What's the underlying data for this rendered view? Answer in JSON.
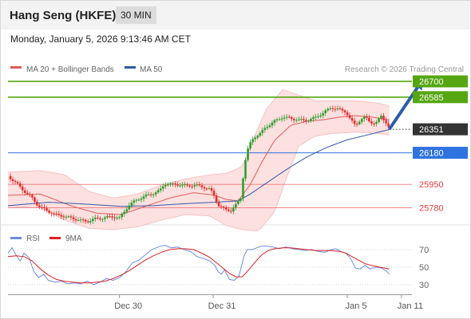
{
  "header": {
    "title": "Hang Seng (HKFE)",
    "interval": "30 MIN",
    "timestamp": "Monday, January 5, 2026 9:13:46 AM CET"
  },
  "legend": {
    "ma20_bb": "MA 20 + Bollinger Bands",
    "ma50": "MA 50",
    "credit": "Research © 2026 Trading Central",
    "rsi": "RSI",
    "rsi_ma": "9MA"
  },
  "colors": {
    "candle_up": "#2e9e2e",
    "candle_down": "#e03030",
    "ma20": "#e05a5a",
    "ma50": "#2f5aa8",
    "bands_fill": "#fde0e0",
    "target_green": "#55a611",
    "pivot_blue": "#2f73e0",
    "support_red": "#e04040",
    "current_bg": "#333333",
    "arrow": "#2b5ea8",
    "rsi_line": "#6a8de0",
    "rsi_ma_line": "#e02020"
  },
  "chart_data": [
    {
      "type": "candlestick",
      "title": "Hang Seng (HKFE)",
      "interval": "30 MIN",
      "ylim": [
        25655,
        26735
      ],
      "x_range": [
        0,
        500
      ],
      "x_tick_labels": [
        {
          "label": "Dec 30",
          "x": 138
        },
        {
          "label": "Dec 31",
          "x": 254
        },
        {
          "label": "Jan 5",
          "x": 420
        },
        {
          "label": "Jan 11",
          "x": 487
        }
      ],
      "levels": [
        {
          "value": 26700,
          "label": "26700",
          "kind": "target"
        },
        {
          "value": 26585,
          "label": "26585",
          "kind": "target"
        },
        {
          "value": 26351,
          "label": "26351",
          "kind": "current"
        },
        {
          "value": 26180,
          "label": "26180",
          "kind": "pivot"
        },
        {
          "value": 25950,
          "label": "25950",
          "kind": "support"
        },
        {
          "value": 25780,
          "label": "25780",
          "kind": "support"
        }
      ],
      "close_keypoints": [
        [
          0,
          26010
        ],
        [
          6,
          25980
        ],
        [
          12,
          25950
        ],
        [
          20,
          25900
        ],
        [
          30,
          25850
        ],
        [
          38,
          25790
        ],
        [
          48,
          25760
        ],
        [
          58,
          25730
        ],
        [
          68,
          25720
        ],
        [
          78,
          25705
        ],
        [
          88,
          25690
        ],
        [
          98,
          25680
        ],
        [
          108,
          25700
        ],
        [
          118,
          25705
        ],
        [
          128,
          25715
        ],
        [
          138,
          25705
        ],
        [
          145,
          25760
        ],
        [
          150,
          25800
        ],
        [
          160,
          25840
        ],
        [
          170,
          25865
        ],
        [
          180,
          25885
        ],
        [
          188,
          25905
        ],
        [
          194,
          25955
        ],
        [
          202,
          25950
        ],
        [
          212,
          25948
        ],
        [
          222,
          25940
        ],
        [
          232,
          25945
        ],
        [
          242,
          25930
        ],
        [
          250,
          25915
        ],
        [
          256,
          25860
        ],
        [
          260,
          25800
        ],
        [
          264,
          25785
        ],
        [
          270,
          25765
        ],
        [
          276,
          25760
        ],
        [
          282,
          25800
        ],
        [
          288,
          25850
        ],
        [
          291,
          26000
        ],
        [
          294,
          26130
        ],
        [
          298,
          26230
        ],
        [
          304,
          26290
        ],
        [
          312,
          26320
        ],
        [
          320,
          26370
        ],
        [
          330,
          26410
        ],
        [
          340,
          26440
        ],
        [
          350,
          26430
        ],
        [
          360,
          26420
        ],
        [
          370,
          26415
        ],
        [
          380,
          26435
        ],
        [
          390,
          26470
        ],
        [
          400,
          26510
        ],
        [
          410,
          26495
        ],
        [
          418,
          26480
        ],
        [
          424,
          26420
        ],
        [
          430,
          26380
        ],
        [
          436,
          26420
        ],
        [
          442,
          26440
        ],
        [
          448,
          26405
        ],
        [
          455,
          26390
        ],
        [
          462,
          26450
        ],
        [
          468,
          26400
        ],
        [
          472,
          26351
        ]
      ],
      "ma20_keypoints": [
        [
          0,
          25870
        ],
        [
          40,
          25880
        ],
        [
          80,
          25790
        ],
        [
          110,
          25740
        ],
        [
          140,
          25730
        ],
        [
          170,
          25790
        ],
        [
          200,
          25850
        ],
        [
          230,
          25890
        ],
        [
          256,
          25870
        ],
        [
          270,
          25840
        ],
        [
          285,
          25830
        ],
        [
          300,
          25950
        ],
        [
          315,
          26120
        ],
        [
          330,
          26270
        ],
        [
          350,
          26380
        ],
        [
          370,
          26410
        ],
        [
          390,
          26420
        ],
        [
          410,
          26440
        ],
        [
          430,
          26450
        ],
        [
          450,
          26440
        ],
        [
          472,
          26420
        ]
      ],
      "ma50_keypoints": [
        [
          0,
          25795
        ],
        [
          50,
          25820
        ],
        [
          100,
          25805
        ],
        [
          140,
          25790
        ],
        [
          180,
          25795
        ],
        [
          220,
          25810
        ],
        [
          255,
          25820
        ],
        [
          285,
          25830
        ],
        [
          300,
          25880
        ],
        [
          320,
          25960
        ],
        [
          345,
          26060
        ],
        [
          370,
          26150
        ],
        [
          395,
          26220
        ],
        [
          420,
          26275
        ],
        [
          445,
          26310
        ],
        [
          472,
          26350
        ]
      ],
      "band_upper_keypoints": [
        [
          0,
          26040
        ],
        [
          40,
          26050
        ],
        [
          70,
          26020
        ],
        [
          100,
          25900
        ],
        [
          130,
          25850
        ],
        [
          160,
          25880
        ],
        [
          190,
          25945
        ],
        [
          220,
          25990
        ],
        [
          250,
          26020
        ],
        [
          270,
          26030
        ],
        [
          290,
          26080
        ],
        [
          305,
          26300
        ],
        [
          320,
          26500
        ],
        [
          340,
          26640
        ],
        [
          360,
          26600
        ],
        [
          380,
          26560
        ],
        [
          400,
          26560
        ],
        [
          430,
          26560
        ],
        [
          460,
          26540
        ],
        [
          472,
          26520
        ]
      ],
      "band_lower_keypoints": [
        [
          0,
          25790
        ],
        [
          40,
          25780
        ],
        [
          70,
          25690
        ],
        [
          100,
          25630
        ],
        [
          130,
          25620
        ],
        [
          160,
          25640
        ],
        [
          190,
          25690
        ],
        [
          220,
          25730
        ],
        [
          250,
          25720
        ],
        [
          270,
          25650
        ],
        [
          290,
          25620
        ],
        [
          310,
          25610
        ],
        [
          330,
          25750
        ],
        [
          345,
          26000
        ],
        [
          360,
          26230
        ],
        [
          380,
          26300
        ],
        [
          400,
          26320
        ],
        [
          430,
          26330
        ],
        [
          460,
          26320
        ],
        [
          472,
          26310
        ]
      ],
      "forecast_arrow": {
        "from": [
          472,
          26351
        ],
        "to": [
          512,
          26700
        ]
      }
    },
    {
      "type": "line",
      "title": "RSI",
      "ylim": [
        20,
        80
      ],
      "y_ticks": [
        70,
        50,
        30
      ],
      "series": [
        {
          "name": "RSI",
          "points": [
            [
              0,
              66
            ],
            [
              5,
              72
            ],
            [
              10,
              64
            ],
            [
              15,
              57
            ],
            [
              20,
              66
            ],
            [
              26,
              61
            ],
            [
              32,
              45
            ],
            [
              38,
              38
            ],
            [
              44,
              42
            ],
            [
              50,
              35
            ],
            [
              58,
              33
            ],
            [
              66,
              34
            ],
            [
              74,
              31
            ],
            [
              82,
              32
            ],
            [
              90,
              31
            ],
            [
              98,
              34
            ],
            [
              106,
              30
            ],
            [
              114,
              33
            ],
            [
              122,
              37
            ],
            [
              130,
              35
            ],
            [
              138,
              38
            ],
            [
              146,
              45
            ],
            [
              154,
              55
            ],
            [
              162,
              58
            ],
            [
              170,
              64
            ],
            [
              178,
              70
            ],
            [
              186,
              73
            ],
            [
              194,
              75
            ],
            [
              202,
              72
            ],
            [
              210,
              73
            ],
            [
              218,
              70
            ],
            [
              226,
              68
            ],
            [
              234,
              62
            ],
            [
              242,
              60
            ],
            [
              250,
              57
            ],
            [
              256,
              52
            ],
            [
              260,
              45
            ],
            [
              264,
              42
            ],
            [
              268,
              47
            ],
            [
              274,
              36
            ],
            [
              280,
              35
            ],
            [
              286,
              40
            ],
            [
              292,
              62
            ],
            [
              296,
              70
            ],
            [
              302,
              70
            ],
            [
              308,
              72
            ],
            [
              314,
              74
            ],
            [
              320,
              74
            ],
            [
              328,
              73
            ],
            [
              336,
              71
            ],
            [
              344,
              73
            ],
            [
              352,
              71
            ],
            [
              360,
              70
            ],
            [
              368,
              69
            ],
            [
              376,
              70
            ],
            [
              384,
              68
            ],
            [
              392,
              67
            ],
            [
              400,
              70
            ],
            [
              406,
              71
            ],
            [
              412,
              68
            ],
            [
              418,
              66
            ],
            [
              424,
              60
            ],
            [
              430,
              49
            ],
            [
              436,
              48
            ],
            [
              442,
              52
            ],
            [
              448,
              48
            ],
            [
              456,
              50
            ],
            [
              462,
              49
            ],
            [
              468,
              46
            ],
            [
              472,
              42
            ]
          ]
        },
        {
          "name": "9MA",
          "points": [
            [
              0,
              62
            ],
            [
              10,
              63
            ],
            [
              20,
              62
            ],
            [
              30,
              57
            ],
            [
              40,
              48
            ],
            [
              50,
              41
            ],
            [
              60,
              36
            ],
            [
              70,
              34
            ],
            [
              80,
              33
            ],
            [
              90,
              32
            ],
            [
              100,
              32
            ],
            [
              110,
              33
            ],
            [
              120,
              34
            ],
            [
              130,
              37
            ],
            [
              140,
              41
            ],
            [
              150,
              46
            ],
            [
              160,
              52
            ],
            [
              170,
              58
            ],
            [
              180,
              63
            ],
            [
              190,
              67
            ],
            [
              200,
              70
            ],
            [
              210,
              71
            ],
            [
              220,
              71
            ],
            [
              230,
              70
            ],
            [
              240,
              66
            ],
            [
              250,
              61
            ],
            [
              258,
              55
            ],
            [
              266,
              49
            ],
            [
              274,
              43
            ],
            [
              282,
              39
            ],
            [
              290,
              39
            ],
            [
              298,
              47
            ],
            [
              306,
              56
            ],
            [
              314,
              64
            ],
            [
              322,
              69
            ],
            [
              330,
              71
            ],
            [
              340,
              72
            ],
            [
              350,
              72
            ],
            [
              360,
              71
            ],
            [
              370,
              70
            ],
            [
              380,
              69
            ],
            [
              390,
              69
            ],
            [
              400,
              69
            ],
            [
              410,
              68
            ],
            [
              418,
              66
            ],
            [
              426,
              62
            ],
            [
              434,
              58
            ],
            [
              442,
              54
            ],
            [
              450,
              52
            ],
            [
              460,
              50
            ],
            [
              472,
              48
            ]
          ]
        }
      ]
    }
  ]
}
